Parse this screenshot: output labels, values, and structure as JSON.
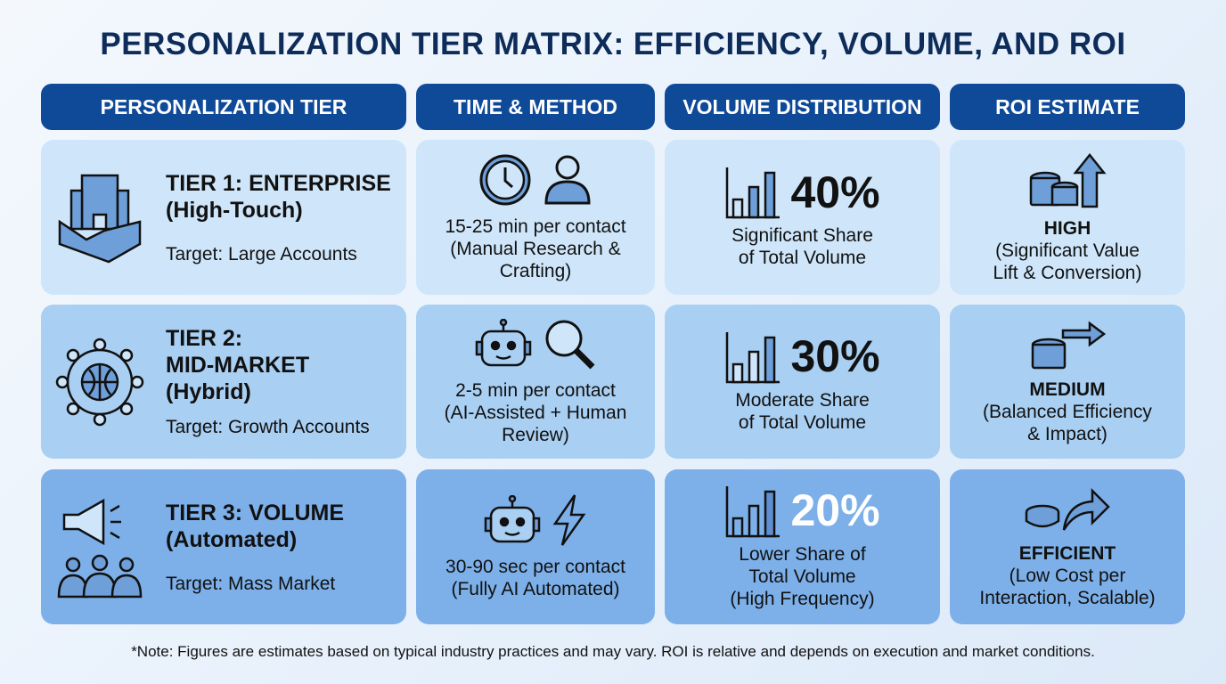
{
  "title": "PERSONALIZATION TIER MATRIX: EFFICIENCY, VOLUME, AND ROI",
  "headers": [
    "PERSONALIZATION TIER",
    "TIME & METHOD",
    "VOLUME DISTRIBUTION",
    "ROI ESTIMATE"
  ],
  "colors": {
    "header": "#0f4a98",
    "row1": "#cfe6fa",
    "row2": "#a9cff2",
    "row3": "#7db0e9",
    "title": "#0d2c5a"
  },
  "rows": [
    {
      "tier_name": "TIER 1: ENTERPRISE",
      "tier_sub": "(High-Touch)",
      "target": "Target: Large Accounts",
      "tier_icon": "building-handshake-icon",
      "time_icons": [
        "clock-icon",
        "person-icon"
      ],
      "time_lines": [
        "15-25 min per contact",
        "(Manual Research &",
        "Crafting)"
      ],
      "percent": "40%",
      "volume_lines": [
        "Significant Share",
        "of Total Volume"
      ],
      "roi_icon": "coins-arrow-up-icon",
      "roi_level": "HIGH",
      "roi_lines": [
        "(Significant Value",
        "Lift & Conversion)"
      ]
    },
    {
      "tier_name": "TIER 2:",
      "tier_name2": "MID-MARKET",
      "tier_sub": "(Hybrid)",
      "target": "Target: Growth Accounts",
      "tier_icon": "globe-network-icon",
      "time_icons": [
        "robot-icon",
        "magnifier-icon"
      ],
      "time_lines": [
        "2-5 min per contact",
        "(AI-Assisted + Human",
        "Review)"
      ],
      "percent": "30%",
      "volume_lines": [
        "Moderate Share",
        "of Total Volume"
      ],
      "roi_icon": "coins-arrow-right-icon",
      "roi_level": "MEDIUM",
      "roi_lines": [
        "(Balanced Efficiency",
        "& Impact)"
      ]
    },
    {
      "tier_name": "TIER 3: VOLUME",
      "tier_sub": "(Automated)",
      "target": "Target: Mass Market",
      "tier_icon": "megaphone-crowd-icon",
      "time_icons": [
        "robot-icon",
        "lightning-icon"
      ],
      "time_lines": [
        "30-90 sec per contact",
        "(Fully AI Automated)"
      ],
      "percent": "20%",
      "volume_lines": [
        "Lower Share of",
        "Total Volume",
        "(High Frequency)"
      ],
      "roi_icon": "coin-curved-arrow-icon",
      "roi_level": "EFFICIENT",
      "roi_lines": [
        "(Low Cost per",
        "Interaction, Scalable)"
      ]
    }
  ],
  "note": "*Note: Figures are estimates based on typical industry practices and may vary. ROI is relative and depends on execution and market conditions."
}
